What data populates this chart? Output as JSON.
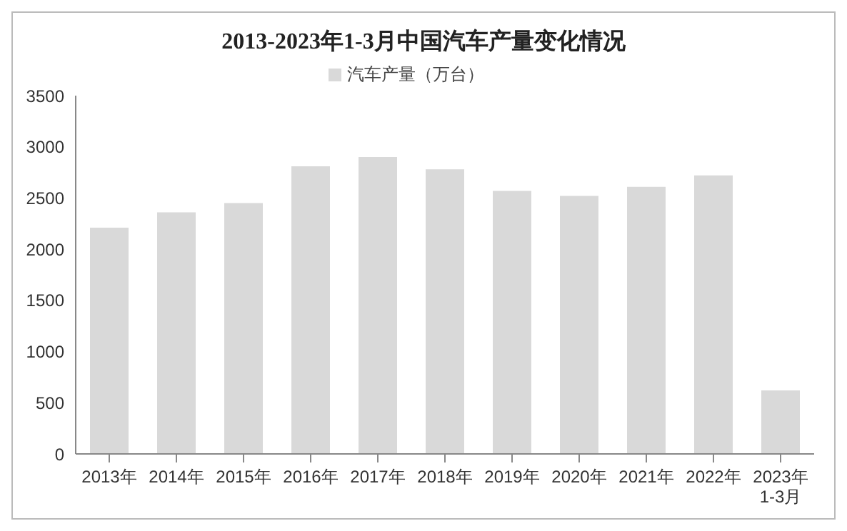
{
  "chart_data": {
    "type": "bar",
    "title": "2013-2023年1-3月中国汽车产量变化情况",
    "categories": [
      "2013年",
      "2014年",
      "2015年",
      "2016年",
      "2017年",
      "2018年",
      "2019年",
      "2020年",
      "2021年",
      "2022年",
      "2023年\n1-3月"
    ],
    "series": [
      {
        "name": "汽车产量（万台）",
        "color": "#d9d9d9",
        "values": [
          2210,
          2360,
          2450,
          2810,
          2900,
          2780,
          2570,
          2520,
          2610,
          2720,
          620
        ]
      }
    ],
    "ylim": [
      0,
      3500
    ],
    "yticks": [
      0,
      500,
      1000,
      1500,
      2000,
      2500,
      3000,
      3500
    ],
    "grid": false,
    "legend": "top"
  }
}
